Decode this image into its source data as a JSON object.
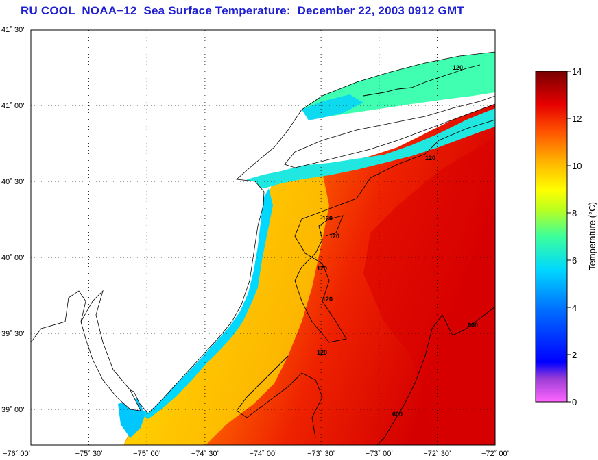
{
  "title": "RU COOL  NOAA−12  Sea Surface Temperature:  December 22, 2003 0912 GMT",
  "lat_labels": [
    "41˚ 30’",
    "41˚ 00’",
    "40˚ 30’",
    "40˚ 00’",
    "39˚ 30’",
    "39˚ 00’"
  ],
  "lon_labels": [
    "−76˚ 00’",
    "−75˚ 30’",
    "−75˚ 00’",
    "−74˚ 30’",
    "−74˚ 00’",
    "−73˚ 30’",
    "−73˚ 00’",
    "−72˚ 30’",
    "−72˚ 00’"
  ],
  "colorbar": {
    "label": "Temperature (°C)",
    "min": 0,
    "max": 14,
    "ticks": [
      "0",
      "2",
      "4",
      "6",
      "8",
      "10",
      "12",
      "14"
    ],
    "colors": [
      "#ff66ff",
      "#6a3cd0",
      "#0014ff",
      "#00c8ff",
      "#00ffd0",
      "#8cff30",
      "#ffff00",
      "#ffb000",
      "#ff5a00",
      "#e60000",
      "#7a0000"
    ]
  },
  "contour_labels": [
    "120",
    "120",
    "120",
    "120",
    "120",
    "120",
    "120",
    "600",
    "600"
  ]
}
